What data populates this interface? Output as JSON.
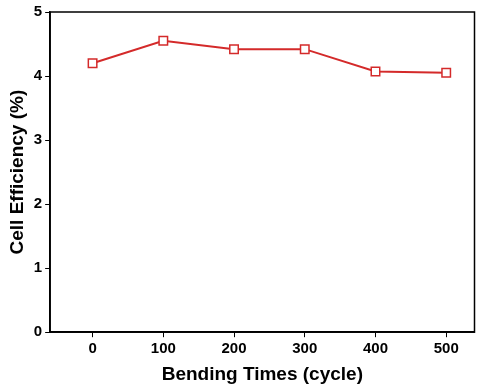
{
  "chart_data": {
    "type": "line",
    "x_label": "Bending Times (cycle)",
    "y_label": "Cell Efficiency (%)",
    "x": [
      0,
      100,
      200,
      300,
      400,
      500
    ],
    "series": [
      {
        "name": "Cell Efficiency",
        "color": "#d42a2a",
        "values": [
          4.2,
          4.55,
          4.42,
          4.42,
          4.07,
          4.05
        ],
        "marker": "square",
        "line_style": "solid"
      }
    ],
    "xlim": [
      -60,
      540
    ],
    "xticks": [
      0,
      100,
      200,
      300,
      400,
      500
    ],
    "ylim": [
      0,
      5
    ],
    "yticks": [
      0,
      1,
      2,
      3,
      4,
      5
    ],
    "grid": false
  }
}
